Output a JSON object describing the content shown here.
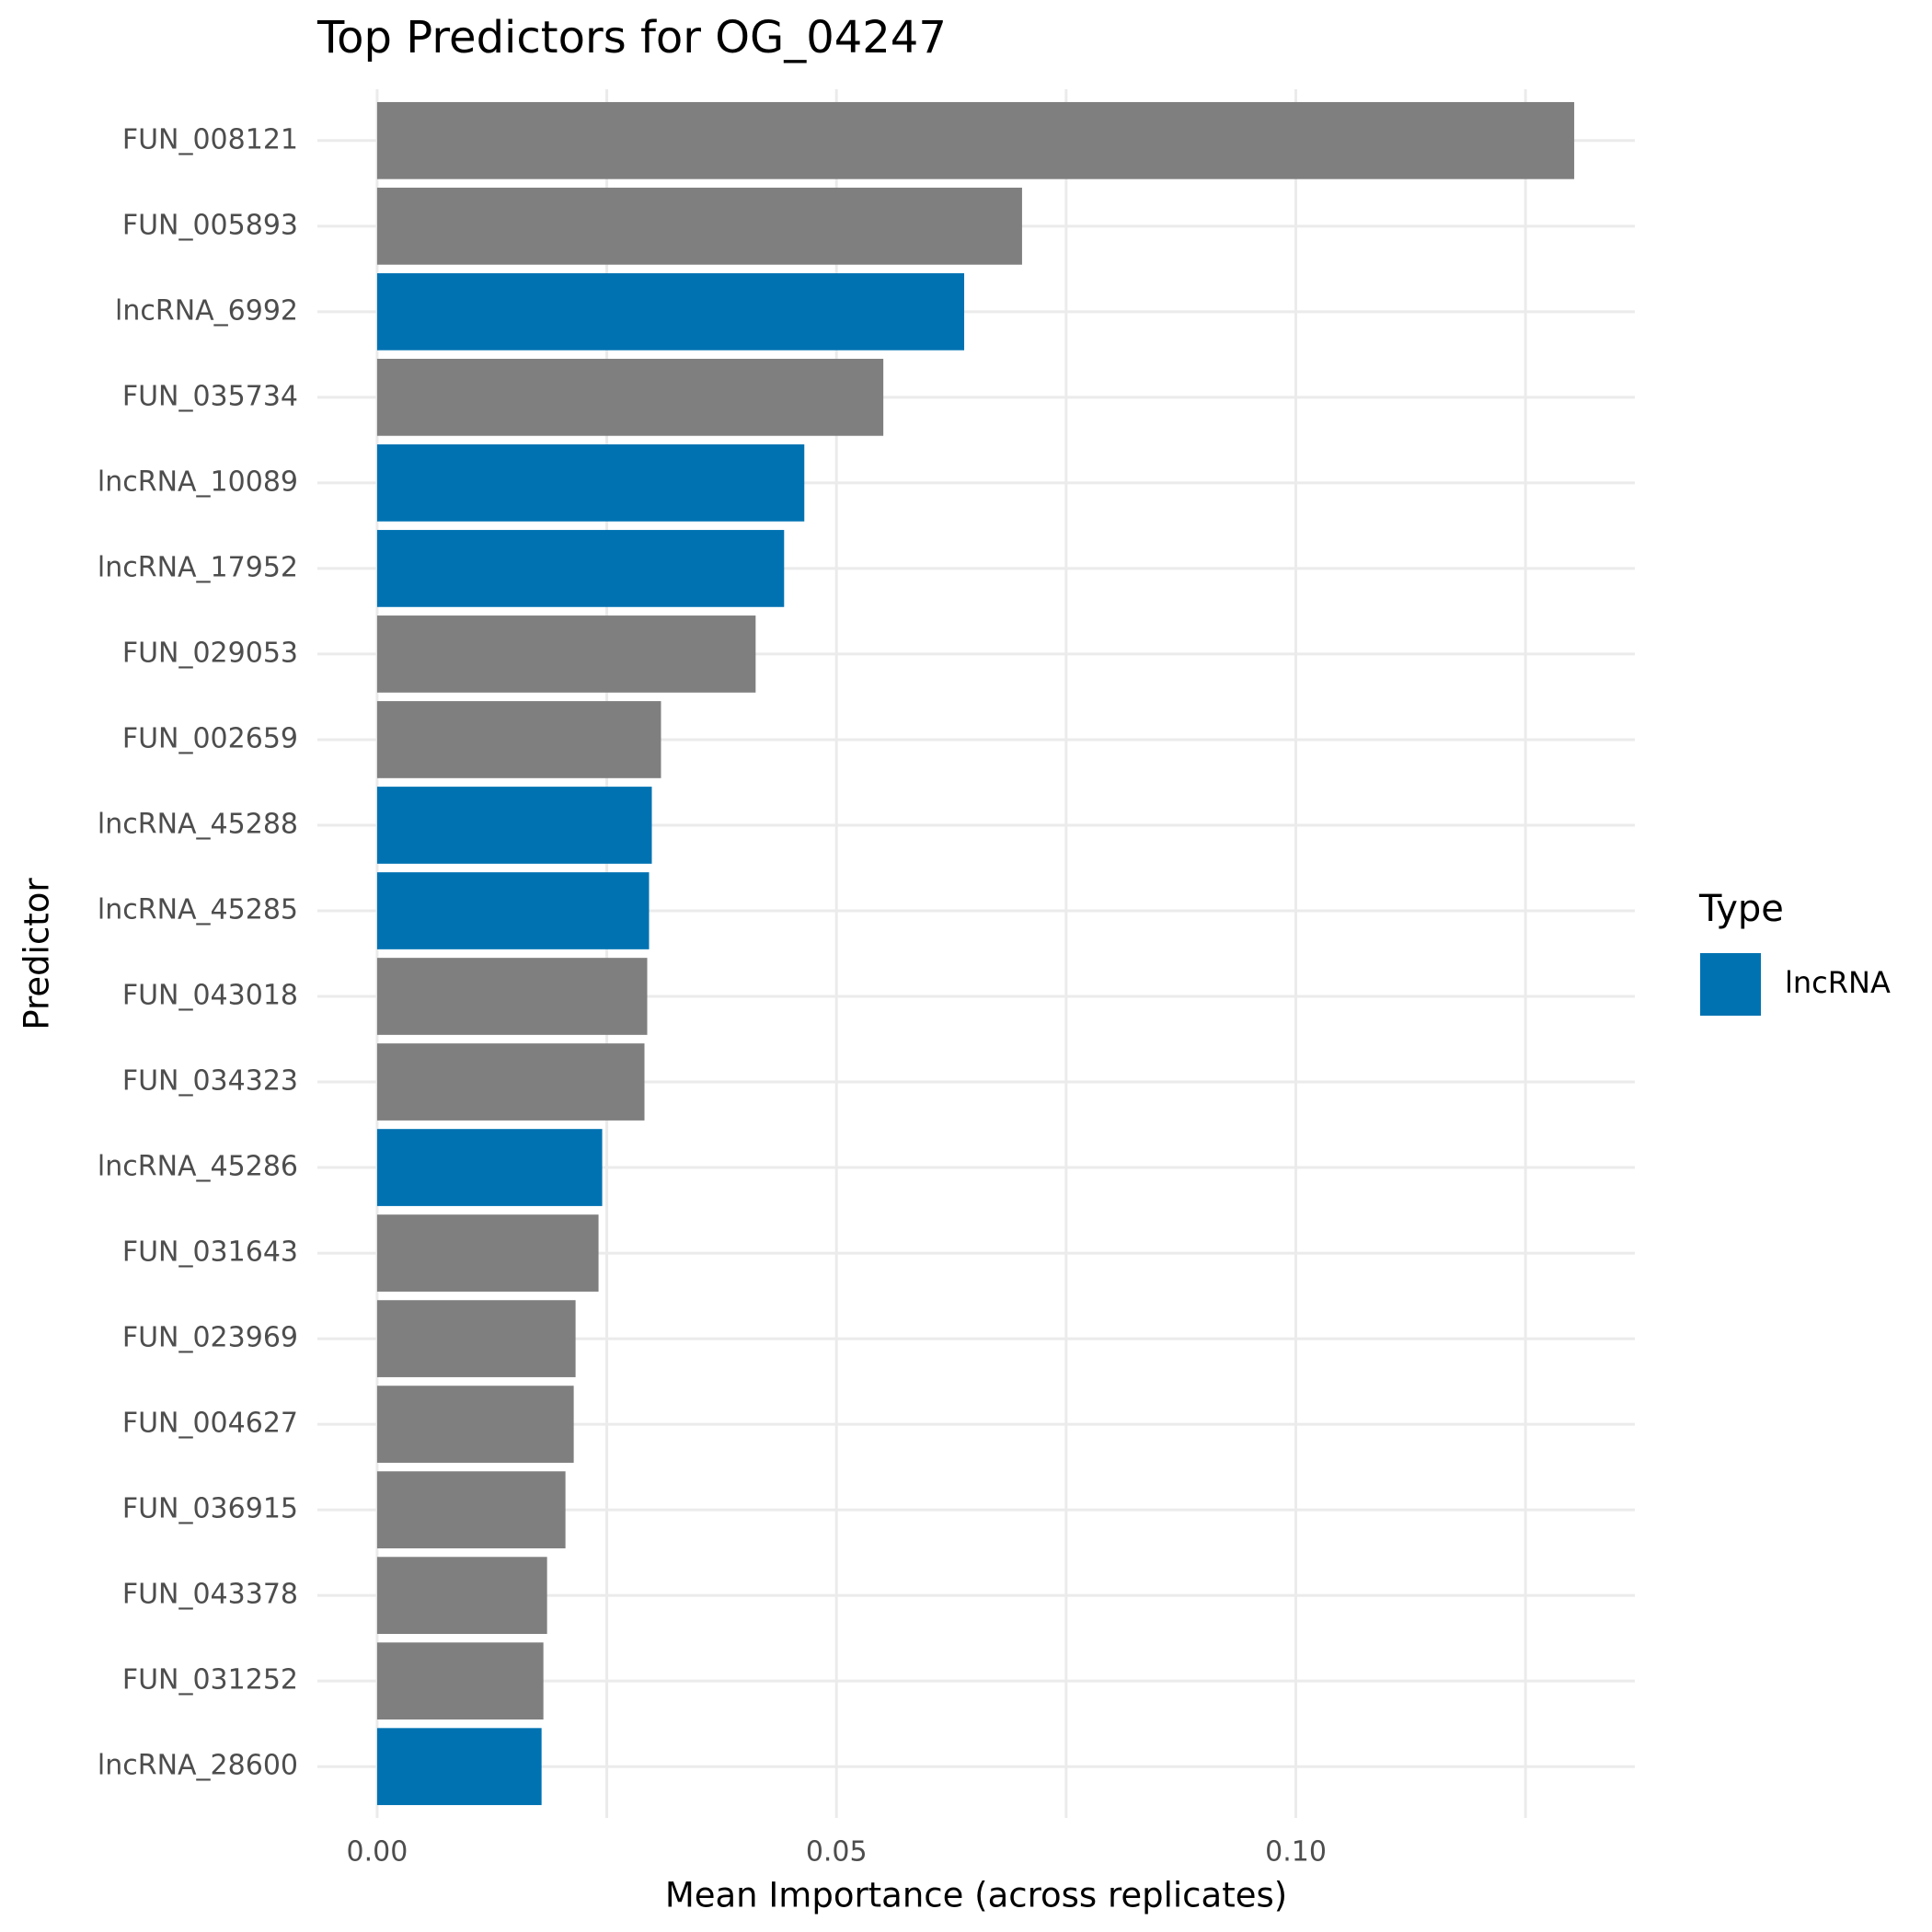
{
  "chart_data": {
    "type": "barh",
    "title": "Top Predictors for OG_04247",
    "x_label": "Mean Importance (across replicates)",
    "y_label": "Predictor",
    "categories": [
      "FUN_008121",
      "FUN_005893",
      "lncRNA_6992",
      "FUN_035734",
      "lncRNA_10089",
      "lncRNA_17952",
      "FUN_029053",
      "FUN_002659",
      "lncRNA_45288",
      "lncRNA_45285",
      "FUN_043018",
      "FUN_034323",
      "lncRNA_45286",
      "FUN_031643",
      "FUN_023969",
      "FUN_004627",
      "FUN_036915",
      "FUN_043378",
      "FUN_031252",
      "lncRNA_28600"
    ],
    "values": [
      0.1303,
      0.0702,
      0.0639,
      0.0551,
      0.0465,
      0.0443,
      0.0412,
      0.0309,
      0.0299,
      0.0296,
      0.0294,
      0.0291,
      0.0245,
      0.0241,
      0.0216,
      0.0214,
      0.0205,
      0.0185,
      0.0181,
      0.0179
    ],
    "colors": [
      "#7f7f7f",
      "#7f7f7f",
      "#0072B2",
      "#7f7f7f",
      "#0072B2",
      "#0072B2",
      "#7f7f7f",
      "#7f7f7f",
      "#0072B2",
      "#0072B2",
      "#7f7f7f",
      "#7f7f7f",
      "#0072B2",
      "#7f7f7f",
      "#7f7f7f",
      "#7f7f7f",
      "#7f7f7f",
      "#7f7f7f",
      "#7f7f7f",
      "#0072B2"
    ],
    "xlim": [
      -0.0065,
      0.1369
    ],
    "xticks": [
      {
        "value": 0,
        "label": "0.00"
      },
      0.05,
      {
        "value": 0.1,
        "label": "0.10"
      }
    ],
    "minor_xticks": [
      0.025,
      0.075,
      0.125
    ],
    "grid": true,
    "legend": {
      "title": "Type",
      "position": "right",
      "entries": [
        {
          "label": "lncRNA",
          "color": "#0072B2"
        }
      ]
    }
  }
}
